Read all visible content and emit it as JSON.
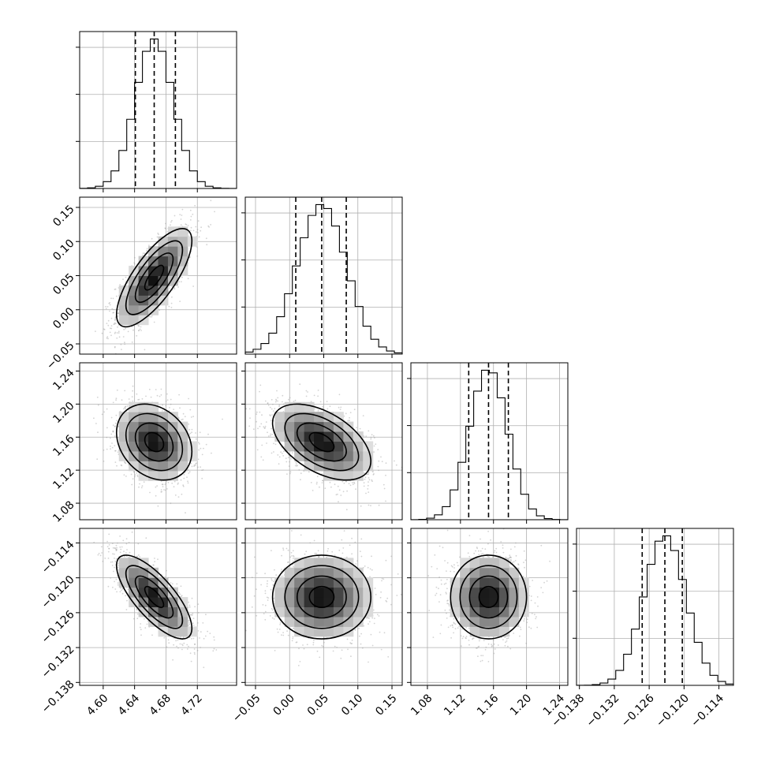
{
  "chart_data": {
    "type": "corner",
    "parameters": [
      {
        "mean": 4.665,
        "sd": 0.024,
        "range": [
          4.57,
          4.77
        ],
        "xticks": [
          4.6,
          4.64,
          4.68,
          4.72
        ],
        "xtick_labels": [
          "4.60",
          "4.64",
          "4.68",
          "4.72"
        ],
        "quantiles": [
          4.641,
          4.665,
          4.692
        ],
        "yticks": [],
        "ytick_labels": []
      },
      {
        "mean": 0.047,
        "sd": 0.036,
        "range": [
          -0.065,
          0.165
        ],
        "xticks": [
          -0.05,
          0.0,
          0.05,
          0.1,
          0.15
        ],
        "xtick_labels": [
          "−0.05",
          "0.00",
          "0.05",
          "0.10",
          "0.15"
        ],
        "quantiles": [
          0.009,
          0.047,
          0.083
        ],
        "yticks": [
          -0.05,
          0.0,
          0.05,
          0.1,
          0.15
        ],
        "ytick_labels": [
          "−0.05",
          "0.00",
          "0.05",
          "0.10",
          "0.15"
        ]
      },
      {
        "mean": 1.154,
        "sd": 0.023,
        "range": [
          1.06,
          1.25
        ],
        "xticks": [
          1.08,
          1.12,
          1.16,
          1.2,
          1.24
        ],
        "xtick_labels": [
          "1.08",
          "1.12",
          "1.16",
          "1.20",
          "1.24"
        ],
        "quantiles": [
          1.13,
          1.154,
          1.178
        ],
        "yticks": [
          1.08,
          1.12,
          1.16,
          1.2,
          1.24
        ],
        "ytick_labels": [
          "1.08",
          "1.12",
          "1.16",
          "1.20",
          "1.24"
        ]
      },
      {
        "mean": -0.1233,
        "sd": 0.0036,
        "range": [
          -0.1385,
          -0.1115
        ],
        "xticks": [
          -0.138,
          -0.132,
          -0.126,
          -0.12,
          -0.114
        ],
        "xtick_labels": [
          "−0.138",
          "−0.132",
          "−0.126",
          "−0.120",
          "−0.114"
        ],
        "quantiles": [
          -0.1272,
          -0.1233,
          -0.1203
        ],
        "yticks": [
          -0.138,
          -0.132,
          -0.126,
          -0.12,
          -0.114
        ],
        "ytick_labels": [
          "−0.138",
          "−0.132",
          "−0.126",
          "−0.120",
          "−0.114"
        ]
      }
    ],
    "correlations": [
      [
        1,
        0.75,
        -0.25,
        -0.75
      ],
      [
        0.75,
        1,
        -0.5,
        0.0
      ],
      [
        -0.25,
        -0.5,
        1,
        0.0
      ],
      [
        -0.75,
        0.0,
        0.0,
        1
      ]
    ],
    "histogram_bins": 20,
    "quantile_levels": [
      0.16,
      0.5,
      0.84
    ],
    "contour_levels_sigma": [
      0.5,
      1.0,
      1.5,
      2.0
    ],
    "grid": true,
    "colors": {
      "line": "#000000",
      "points": "#9e9e9e",
      "grid": "#b0b0b0"
    }
  }
}
